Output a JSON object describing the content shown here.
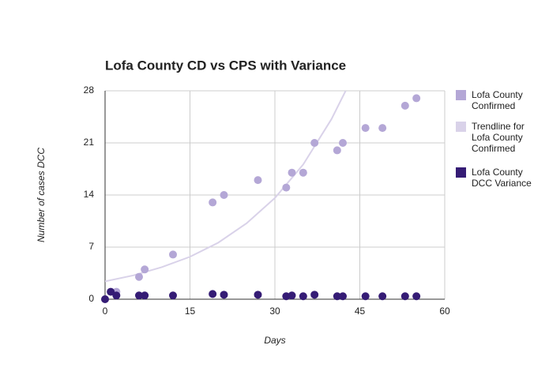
{
  "chart_data": {
    "type": "scatter",
    "title": "Lofa County CD vs CPS with Variance",
    "x_label": "Days",
    "y_label": "Number of cases DCC",
    "xlim": [
      0,
      60
    ],
    "xticks": [
      0,
      15,
      30,
      45,
      60
    ],
    "ylim": [
      0,
      28
    ],
    "yticks": [
      0,
      7,
      14,
      21,
      28
    ],
    "grid": true,
    "series": [
      {
        "name": "Lofa County Confirmed",
        "color": "#b4a7d6",
        "mode": "points",
        "x": [
          2,
          6,
          7,
          12,
          19,
          21,
          27,
          32,
          33,
          35,
          37,
          41,
          42,
          46,
          49,
          53,
          55
        ],
        "values": [
          1,
          3,
          4,
          6,
          13,
          14,
          16,
          15,
          17,
          17,
          21,
          20,
          21,
          23,
          23,
          26,
          27
        ]
      },
      {
        "name": "Trendline for Lofa County Confirmed",
        "color": "#d9d2e9",
        "mode": "line",
        "x": [
          0,
          5,
          10,
          15,
          20,
          25,
          30,
          35,
          40,
          42.5
        ],
        "values": [
          2.4,
          3.2,
          4.3,
          5.7,
          7.6,
          10.2,
          13.6,
          18.1,
          24.2,
          28
        ]
      },
      {
        "name": "Lofa County DCC Variance",
        "color": "#351c75",
        "mode": "points",
        "x": [
          0,
          1,
          2,
          6,
          7,
          12,
          19,
          21,
          27,
          32,
          33,
          35,
          37,
          41,
          42,
          46,
          49,
          53,
          55
        ],
        "values": [
          0,
          1,
          0.5,
          0.5,
          0.5,
          0.5,
          0.7,
          0.6,
          0.6,
          0.4,
          0.5,
          0.4,
          0.6,
          0.4,
          0.4,
          0.4,
          0.4,
          0.4,
          0.4
        ]
      }
    ]
  }
}
